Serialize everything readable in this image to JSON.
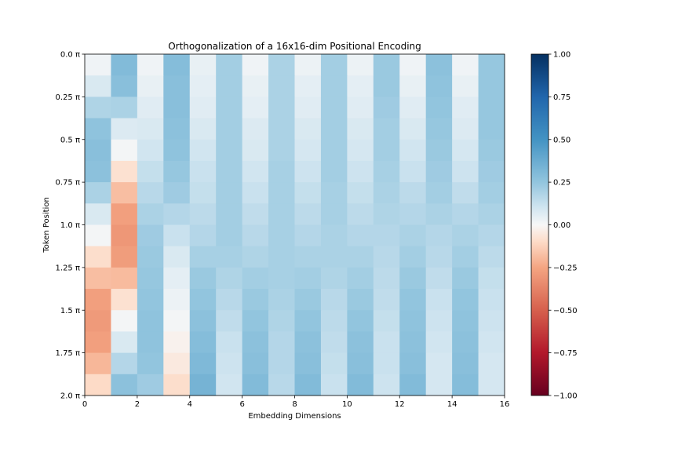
{
  "chart_data": {
    "type": "heatmap",
    "title": "Orthogonalization of a 16x16-dim Positional Encoding",
    "xlabel": "Embedding Dimensions",
    "ylabel": "Token Position",
    "xlim": [
      0,
      16
    ],
    "ylim": [
      0,
      16
    ],
    "x_ticks": [
      {
        "value": 0,
        "label": "0"
      },
      {
        "value": 2,
        "label": "2"
      },
      {
        "value": 4,
        "label": "4"
      },
      {
        "value": 6,
        "label": "6"
      },
      {
        "value": 8,
        "label": "8"
      },
      {
        "value": 10,
        "label": "10"
      },
      {
        "value": 12,
        "label": "12"
      },
      {
        "value": 14,
        "label": "14"
      },
      {
        "value": 16,
        "label": "16"
      }
    ],
    "y_ticks": [
      {
        "value": 0,
        "label": "0.0 π"
      },
      {
        "value": 2,
        "label": "0.25 π"
      },
      {
        "value": 4,
        "label": "0.5 π"
      },
      {
        "value": 6,
        "label": "0.75 π"
      },
      {
        "value": 8,
        "label": "1.0 π"
      },
      {
        "value": 10,
        "label": "1.25 π"
      },
      {
        "value": 12,
        "label": "1.5 π"
      },
      {
        "value": 14,
        "label": "1.75 π"
      },
      {
        "value": 16,
        "label": "2.0 π"
      }
    ],
    "colormap": "RdBu",
    "vmin": -1.0,
    "vmax": 1.0,
    "colorbar_ticks": [
      {
        "value": 1.0,
        "label": "1.00"
      },
      {
        "value": 0.75,
        "label": "0.75"
      },
      {
        "value": 0.5,
        "label": "0.50"
      },
      {
        "value": 0.25,
        "label": "0.25"
      },
      {
        "value": 0.0,
        "label": "0.00"
      },
      {
        "value": -0.25,
        "label": "−0.25"
      },
      {
        "value": -0.5,
        "label": "−0.50"
      },
      {
        "value": -0.75,
        "label": "−0.75"
      },
      {
        "value": -1.0,
        "label": "−1.00"
      }
    ],
    "colorbar_stops": [
      {
        "value": -1.0,
        "color": "#67001f"
      },
      {
        "value": -0.75,
        "color": "#b2182b"
      },
      {
        "value": -0.5,
        "color": "#d6604d"
      },
      {
        "value": -0.25,
        "color": "#f4a582"
      },
      {
        "value": -0.1,
        "color": "#fddbc7"
      },
      {
        "value": 0.0,
        "color": "#f7f7f7"
      },
      {
        "value": 0.1,
        "color": "#d1e5f0"
      },
      {
        "value": 0.25,
        "color": "#92c5de"
      },
      {
        "value": 0.5,
        "color": "#4393c3"
      },
      {
        "value": 0.75,
        "color": "#2166ac"
      },
      {
        "value": 1.0,
        "color": "#053061"
      }
    ],
    "values": [
      [
        0.02,
        0.3,
        0.02,
        0.29,
        0.04,
        0.21,
        0.02,
        0.19,
        0.03,
        0.21,
        0.03,
        0.23,
        0.02,
        0.27,
        0.02,
        0.24
      ],
      [
        0.08,
        0.28,
        0.04,
        0.28,
        0.05,
        0.21,
        0.04,
        0.19,
        0.05,
        0.21,
        0.05,
        0.23,
        0.04,
        0.26,
        0.04,
        0.24
      ],
      [
        0.18,
        0.19,
        0.06,
        0.28,
        0.06,
        0.21,
        0.05,
        0.19,
        0.06,
        0.21,
        0.06,
        0.22,
        0.06,
        0.25,
        0.06,
        0.24
      ],
      [
        0.26,
        0.07,
        0.08,
        0.27,
        0.08,
        0.21,
        0.07,
        0.19,
        0.08,
        0.21,
        0.08,
        0.21,
        0.08,
        0.24,
        0.07,
        0.24
      ],
      [
        0.28,
        0.01,
        0.1,
        0.26,
        0.1,
        0.21,
        0.08,
        0.19,
        0.09,
        0.21,
        0.09,
        0.21,
        0.1,
        0.23,
        0.09,
        0.23
      ],
      [
        0.27,
        -0.08,
        0.13,
        0.24,
        0.12,
        0.21,
        0.1,
        0.2,
        0.11,
        0.21,
        0.11,
        0.2,
        0.12,
        0.22,
        0.11,
        0.22
      ],
      [
        0.19,
        -0.18,
        0.16,
        0.22,
        0.13,
        0.21,
        0.12,
        0.2,
        0.13,
        0.2,
        0.13,
        0.19,
        0.15,
        0.21,
        0.14,
        0.21
      ],
      [
        0.08,
        -0.27,
        0.19,
        0.17,
        0.15,
        0.21,
        0.14,
        0.2,
        0.15,
        0.2,
        0.15,
        0.18,
        0.17,
        0.19,
        0.17,
        0.19
      ],
      [
        0.01,
        -0.3,
        0.22,
        0.12,
        0.17,
        0.21,
        0.16,
        0.2,
        0.17,
        0.19,
        0.17,
        0.17,
        0.19,
        0.17,
        0.19,
        0.17
      ],
      [
        -0.09,
        -0.28,
        0.23,
        0.08,
        0.2,
        0.2,
        0.18,
        0.2,
        0.19,
        0.19,
        0.19,
        0.16,
        0.21,
        0.16,
        0.21,
        0.15
      ],
      [
        -0.18,
        -0.19,
        0.24,
        0.05,
        0.23,
        0.18,
        0.21,
        0.2,
        0.21,
        0.18,
        0.21,
        0.15,
        0.23,
        0.14,
        0.23,
        0.13
      ],
      [
        -0.27,
        -0.08,
        0.25,
        0.03,
        0.25,
        0.16,
        0.23,
        0.19,
        0.23,
        0.16,
        0.23,
        0.14,
        0.25,
        0.12,
        0.25,
        0.12
      ],
      [
        -0.29,
        0.01,
        0.26,
        0.01,
        0.27,
        0.14,
        0.25,
        0.18,
        0.25,
        0.15,
        0.25,
        0.13,
        0.26,
        0.11,
        0.26,
        0.11
      ],
      [
        -0.27,
        0.08,
        0.26,
        -0.02,
        0.29,
        0.12,
        0.27,
        0.17,
        0.27,
        0.14,
        0.27,
        0.12,
        0.27,
        0.1,
        0.27,
        0.1
      ],
      [
        -0.2,
        0.17,
        0.25,
        -0.05,
        0.31,
        0.11,
        0.28,
        0.17,
        0.28,
        0.13,
        0.28,
        0.12,
        0.28,
        0.09,
        0.28,
        0.09
      ],
      [
        -0.1,
        0.27,
        0.22,
        -0.09,
        0.34,
        0.1,
        0.3,
        0.16,
        0.3,
        0.12,
        0.3,
        0.11,
        0.3,
        0.09,
        0.29,
        0.09
      ]
    ]
  }
}
